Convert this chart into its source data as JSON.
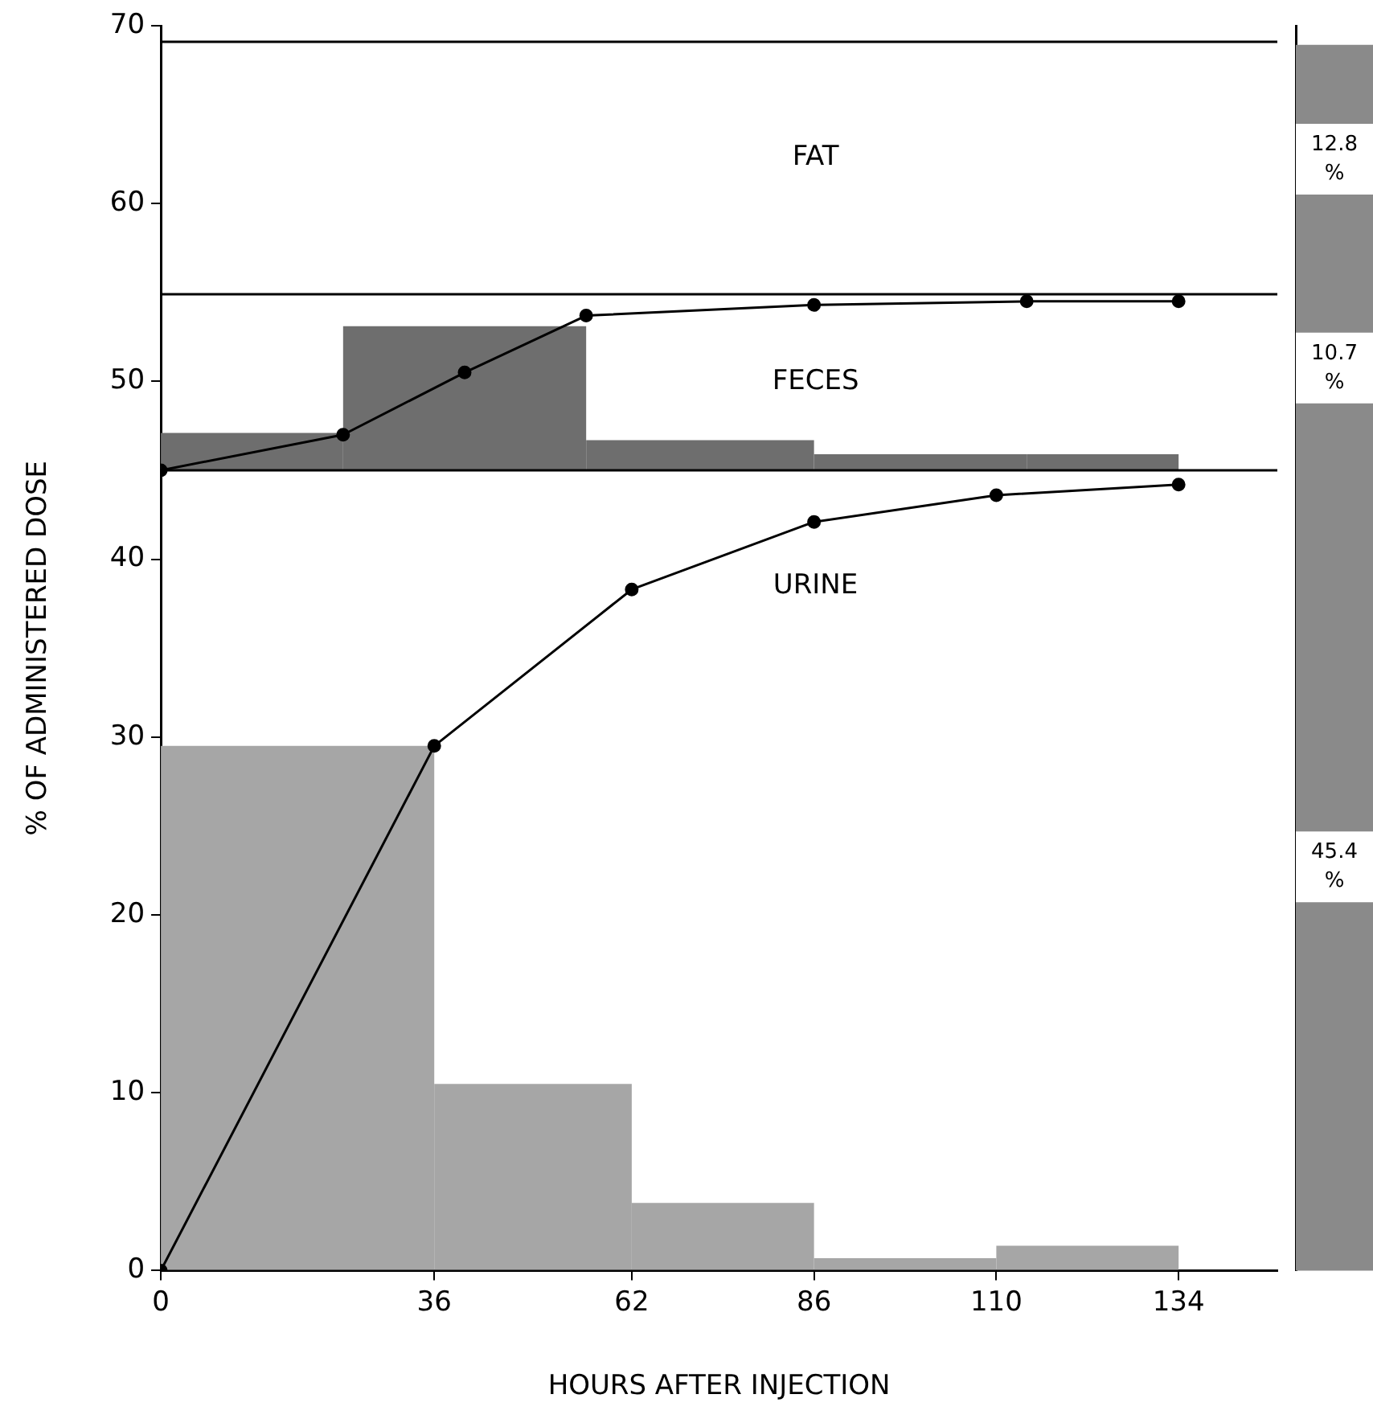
{
  "chart_data": [
    {
      "type": "histogram",
      "xlabel": "HOURS AFTER INJECTION",
      "ylabel": "% OF ADMINISTERED DOSE",
      "xlim": [
        0,
        147
      ],
      "xticks": [
        0,
        36,
        62,
        86,
        110,
        134
      ],
      "ylim": [
        0,
        70
      ],
      "yticks": [
        0,
        10,
        20,
        30,
        40,
        50,
        60,
        70
      ],
      "grid": false,
      "legend": false,
      "series": [
        {
          "color": "#a6a6a6",
          "bins": [
            0,
            36,
            62,
            86,
            110,
            134
          ],
          "values": [
            29.5,
            10.5,
            3.8,
            0.7,
            1.4
          ]
        },
        {
          "color": "#6e6e6e",
          "bins": [
            0,
            24,
            56,
            86,
            114,
            134
          ],
          "base": [
            45.0,
            45.0,
            45.0,
            45.0,
            45.0
          ],
          "values": [
            2.1,
            8.1,
            1.7,
            0.9,
            0.9
          ]
        },
        {
          "type": "line",
          "color": "#000000",
          "marker": "circle",
          "x": [
            0,
            36,
            62,
            86,
            110,
            134
          ],
          "values": [
            0,
            29.5,
            38.3,
            42.1,
            43.6,
            44.2
          ]
        },
        {
          "type": "line",
          "color": "#000000",
          "marker": "circle",
          "x": [
            0,
            24,
            40,
            56,
            86,
            114,
            134
          ],
          "values": [
            45.0,
            47.0,
            50.5,
            53.7,
            54.3,
            54.5,
            54.5
          ]
        }
      ],
      "ref_lines": [
        {
          "axis": "y",
          "value": 69.1,
          "color": "#000000"
        },
        {
          "axis": "y",
          "value": 54.9,
          "color": "#000000"
        },
        {
          "axis": "y",
          "value": 45.0,
          "color": "#000000"
        }
      ],
      "annotations": [
        "FAT",
        "FECES",
        "URINE"
      ]
    },
    {
      "type": "bar",
      "stacked": true,
      "categories": [
        null
      ],
      "ylim": [
        0,
        70
      ],
      "grid": false,
      "legend": false,
      "series": [
        {
          "color": "#8a8a8a",
          "values": [
            45.4
          ],
          "value_labels": [
            "45.4 %"
          ]
        },
        {
          "color": "#8a8a8a",
          "values": [
            10.7
          ],
          "value_labels": [
            "10.7 %"
          ]
        },
        {
          "color": "#8a8a8a",
          "values": [
            12.8
          ],
          "value_labels": [
            "12.8 %"
          ]
        }
      ]
    }
  ]
}
